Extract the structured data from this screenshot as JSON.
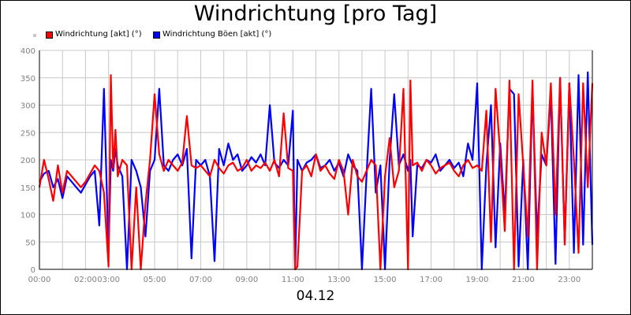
{
  "chart_data": {
    "type": "line",
    "title": "Windrichtung [pro Tag]",
    "xlabel": "04.12",
    "ylabel": "",
    "ylim": [
      0,
      400
    ],
    "yticks": [
      0,
      50,
      100,
      150,
      200,
      250,
      300,
      350,
      400
    ],
    "xlim": [
      0,
      24
    ],
    "xticks": [
      0,
      2,
      3,
      5,
      7,
      9,
      11,
      13,
      15,
      17,
      19,
      21,
      23
    ],
    "xtick_labels": [
      "00:00",
      "02:00",
      "03:00",
      "05:00",
      "07:00",
      "09:00",
      "11:00",
      "13:00",
      "15:00",
      "17:00",
      "19:00",
      "21:00",
      "23:00"
    ],
    "grid": true,
    "legend_position": "top-left",
    "series": [
      {
        "name": "Windrichtung [akt] (°)",
        "color": "#ff0000",
        "x": [
          0.0,
          0.2,
          0.4,
          0.6,
          0.8,
          1.0,
          1.2,
          1.4,
          1.6,
          1.8,
          2.0,
          2.2,
          2.4,
          2.6,
          2.8,
          3.0,
          3.1,
          3.2,
          3.3,
          3.4,
          3.6,
          3.8,
          4.0,
          4.2,
          4.4,
          4.6,
          4.8,
          5.0,
          5.2,
          5.4,
          5.6,
          5.8,
          6.0,
          6.2,
          6.4,
          6.6,
          6.8,
          7.0,
          7.2,
          7.4,
          7.6,
          7.8,
          8.0,
          8.2,
          8.4,
          8.6,
          8.8,
          9.0,
          9.2,
          9.4,
          9.6,
          9.8,
          10.0,
          10.2,
          10.4,
          10.6,
          10.8,
          11.0,
          11.1,
          11.2,
          11.4,
          11.6,
          11.8,
          12.0,
          12.2,
          12.4,
          12.6,
          12.8,
          13.0,
          13.2,
          13.4,
          13.6,
          13.8,
          14.0,
          14.2,
          14.4,
          14.6,
          14.8,
          15.0,
          15.2,
          15.4,
          15.6,
          15.8,
          16.0,
          16.1,
          16.2,
          16.4,
          16.6,
          16.8,
          17.0,
          17.2,
          17.4,
          17.6,
          17.8,
          18.0,
          18.2,
          18.4,
          18.6,
          18.8,
          19.0,
          19.2,
          19.4,
          19.6,
          19.8,
          20.0,
          20.2,
          20.4,
          20.6,
          20.8,
          21.0,
          21.2,
          21.4,
          21.6,
          21.8,
          22.0,
          22.2,
          22.4,
          22.6,
          22.8,
          23.0,
          23.2,
          23.4,
          23.6,
          23.8,
          24.0
        ],
        "values": [
          150,
          200,
          165,
          125,
          190,
          140,
          180,
          170,
          160,
          150,
          160,
          175,
          190,
          180,
          140,
          5,
          355,
          185,
          255,
          170,
          200,
          190,
          0,
          150,
          0,
          120,
          200,
          320,
          210,
          180,
          200,
          190,
          180,
          195,
          280,
          190,
          185,
          190,
          180,
          170,
          200,
          185,
          175,
          190,
          195,
          180,
          185,
          200,
          180,
          190,
          185,
          195,
          180,
          200,
          170,
          285,
          185,
          180,
          0,
          5,
          180,
          190,
          170,
          210,
          180,
          190,
          175,
          165,
          200,
          180,
          100,
          200,
          170,
          160,
          180,
          200,
          190,
          0,
          170,
          240,
          150,
          180,
          330,
          0,
          345,
          190,
          195,
          180,
          200,
          190,
          175,
          185,
          190,
          195,
          180,
          170,
          190,
          200,
          185,
          190,
          180,
          290,
          50,
          330,
          210,
          70,
          345,
          0,
          320,
          190,
          60,
          345,
          0,
          250,
          190,
          340,
          100,
          350,
          45,
          340,
          200,
          30,
          340,
          150,
          340
        ]
      },
      {
        "name": "Windrichtung Böen [akt] (°)",
        "color": "#0000ff",
        "x": [
          0.0,
          0.2,
          0.4,
          0.6,
          0.8,
          1.0,
          1.2,
          1.4,
          1.6,
          1.8,
          2.0,
          2.2,
          2.4,
          2.6,
          2.8,
          3.0,
          3.1,
          3.2,
          3.3,
          3.4,
          3.6,
          3.8,
          4.0,
          4.2,
          4.4,
          4.6,
          4.8,
          5.0,
          5.2,
          5.4,
          5.6,
          5.8,
          6.0,
          6.2,
          6.4,
          6.6,
          6.8,
          7.0,
          7.2,
          7.4,
          7.6,
          7.8,
          8.0,
          8.2,
          8.4,
          8.6,
          8.8,
          9.0,
          9.2,
          9.4,
          9.6,
          9.8,
          10.0,
          10.2,
          10.4,
          10.6,
          10.8,
          11.0,
          11.1,
          11.2,
          11.4,
          11.6,
          11.8,
          12.0,
          12.2,
          12.4,
          12.6,
          12.8,
          13.0,
          13.2,
          13.4,
          13.6,
          13.8,
          14.0,
          14.2,
          14.4,
          14.6,
          14.8,
          15.0,
          15.2,
          15.4,
          15.6,
          15.8,
          16.0,
          16.1,
          16.2,
          16.4,
          16.6,
          16.8,
          17.0,
          17.2,
          17.4,
          17.6,
          17.8,
          18.0,
          18.2,
          18.4,
          18.6,
          18.8,
          19.0,
          19.2,
          19.4,
          19.6,
          19.8,
          20.0,
          20.2,
          20.4,
          20.6,
          20.8,
          21.0,
          21.2,
          21.4,
          21.6,
          21.8,
          22.0,
          22.2,
          22.4,
          22.6,
          22.8,
          23.0,
          23.2,
          23.4,
          23.6,
          23.8,
          24.0
        ],
        "values": [
          160,
          175,
          180,
          150,
          165,
          130,
          170,
          160,
          150,
          140,
          155,
          170,
          180,
          80,
          330,
          30,
          200,
          180,
          220,
          190,
          170,
          0,
          200,
          180,
          150,
          60,
          180,
          200,
          330,
          190,
          180,
          200,
          210,
          190,
          220,
          20,
          200,
          190,
          200,
          170,
          15,
          220,
          190,
          230,
          200,
          210,
          180,
          190,
          205,
          195,
          210,
          190,
          300,
          195,
          185,
          200,
          190,
          290,
          0,
          200,
          180,
          195,
          200,
          210,
          185,
          190,
          200,
          180,
          195,
          170,
          210,
          190,
          180,
          0,
          175,
          330,
          140,
          190,
          0,
          200,
          320,
          190,
          210,
          180,
          200,
          60,
          190,
          185,
          200,
          195,
          210,
          180,
          190,
          200,
          185,
          195,
          170,
          230,
          200,
          340,
          0,
          190,
          300,
          40,
          230,
          100,
          330,
          320,
          5,
          200,
          0,
          330,
          60,
          210,
          190,
          320,
          10,
          350,
          50,
          340,
          30,
          355,
          45,
          360,
          45
        ]
      }
    ]
  }
}
